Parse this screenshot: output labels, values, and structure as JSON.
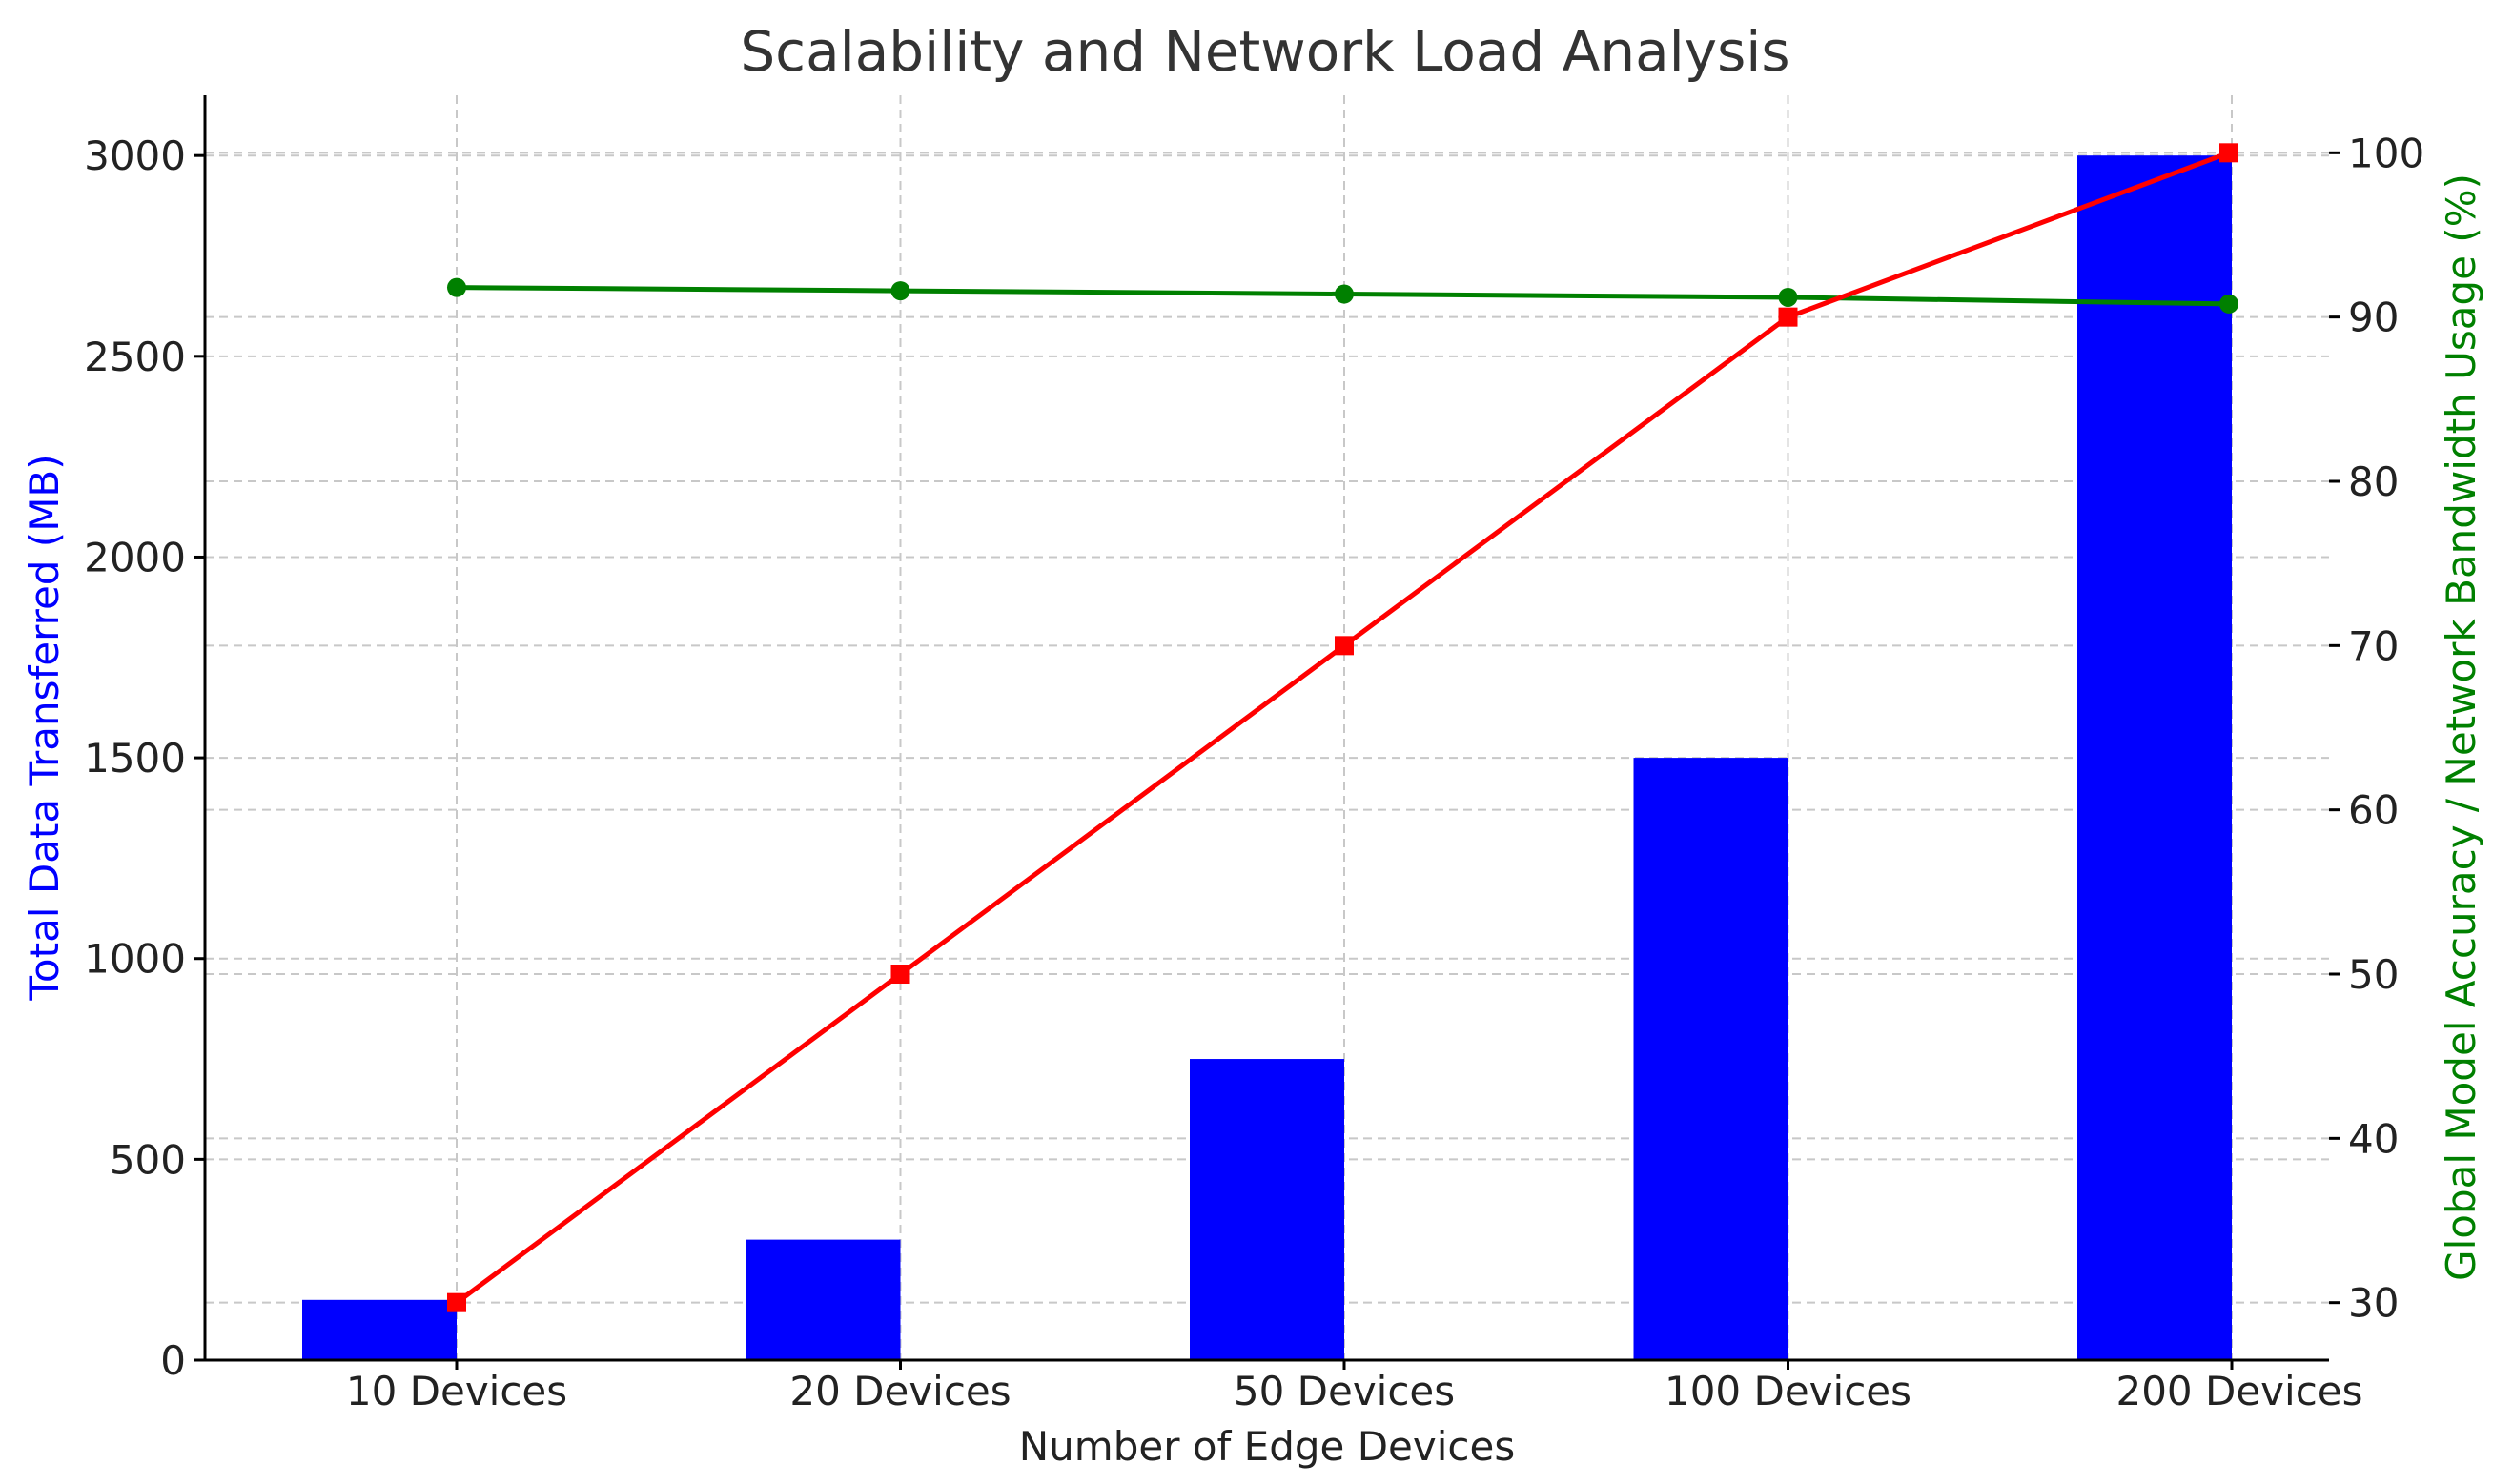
{
  "chart_data": {
    "type": "bar",
    "title": "Scalability and Network Load Analysis",
    "xlabel": "Number of Edge Devices",
    "ylabel_left": "Total Data Transferred (MB)",
    "ylabel_right": "Global Model Accuracy / Network Bandwidth Usage (%)",
    "categories": [
      "10 Devices",
      "20 Devices",
      "50 Devices",
      "100 Devices",
      "200 Devices"
    ],
    "left_axis": {
      "ylim": [
        0,
        3150
      ],
      "ticks": [
        0,
        500,
        1000,
        1500,
        2000,
        2500,
        3000
      ]
    },
    "right_axis": {
      "ylim": [
        26.5,
        103.5
      ],
      "ticks": [
        30,
        40,
        50,
        60,
        70,
        80,
        90,
        100
      ]
    },
    "grid": true,
    "series": [
      {
        "axis": "left",
        "kind": "bar",
        "color": "#0000ff",
        "values": [
          150,
          300,
          750,
          1500,
          3000
        ]
      },
      {
        "axis": "right",
        "kind": "line",
        "marker": "circle",
        "color": "#008000",
        "values": [
          91.8,
          91.6,
          91.4,
          91.2,
          90.8
        ]
      },
      {
        "axis": "right",
        "kind": "line",
        "marker": "square",
        "color": "#ff0000",
        "values": [
          30,
          50,
          70,
          90,
          100
        ]
      }
    ]
  }
}
